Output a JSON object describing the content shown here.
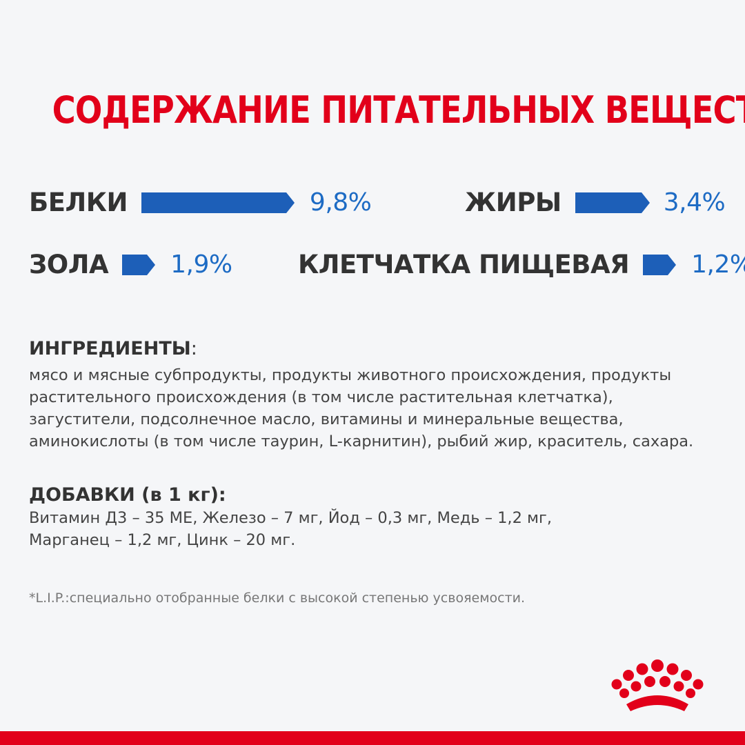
{
  "title": "СОДЕРЖАНИЕ ПИТАТЕЛЬНЫХ ВЕЩЕСТВ",
  "nutrients": [
    {
      "label": "БЕЛКИ",
      "value": "9,8%"
    },
    {
      "label": "ЖИРЫ",
      "value": "3,4%"
    },
    {
      "label": "ЗОЛА",
      "value": "1,9%"
    },
    {
      "label": "КЛЕТЧАТКА ПИЩЕВАЯ",
      "value": "1,2%"
    }
  ],
  "ingredients": {
    "title": "ИНГРЕДИЕНТЫ",
    "colon": ":",
    "lines": [
      "мясо и мясные субпродукты, продукты животного происхождения, продукты",
      "растительного происхождения (в том числе растительная клетчатка),",
      "загустители, подсолнечное масло, витамины и минеральные вещества,",
      "аминокислоты (в том числе таурин, L-карнитин), рыбий жир, краситель, сахара."
    ]
  },
  "additives": {
    "title": "ДОБАВКИ (в 1 кг):",
    "lines": [
      "Витамин Д3 – 35 МЕ, Железо – 7 мг, Йод – 0,3 мг, Медь – 1,2 мг,",
      "Марганец – 1,2 мг, Цинк – 20 мг."
    ]
  },
  "footnote": "*L.I.P.:специально отобранные белки с высокой степенью усвояемости.",
  "colors": {
    "brand_red": "#e2001a",
    "bar_blue": "#1d5fb8",
    "value_blue": "#1d6bc4",
    "background": "#f5f6f8"
  },
  "icons": [
    "royal-canin-crown-logo-icon"
  ]
}
